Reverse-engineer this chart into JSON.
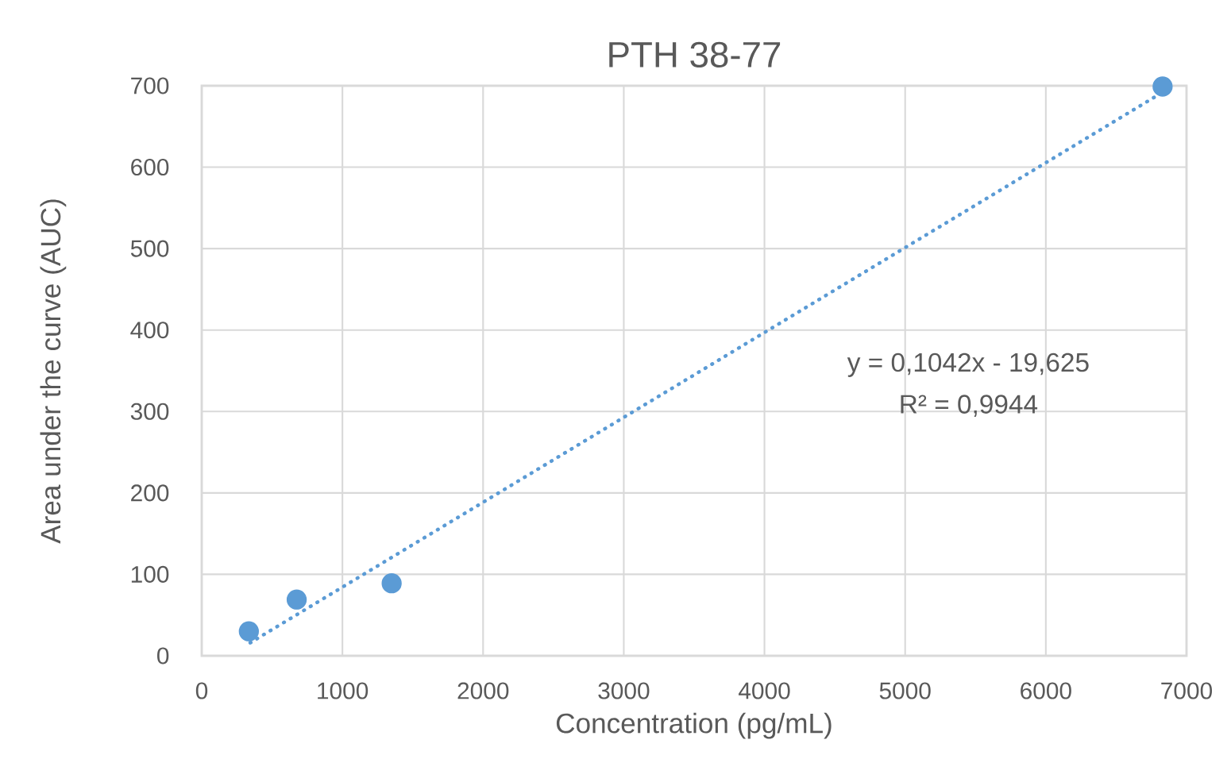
{
  "chart_data": {
    "type": "scatter",
    "title": "PTH 38-77",
    "xlabel": "Concentration (pg/mL)",
    "ylabel": "Area under the curve (AUC)",
    "series": [
      {
        "color": "#5b9bd5",
        "marker": "circle",
        "x": [
          335,
          675,
          1350,
          6830
        ],
        "values": [
          30,
          69,
          89,
          699
        ]
      },
      {
        "type": "line",
        "color": "#5b9bd5",
        "line_style": "dotted",
        "marker": "none",
        "x": [
          345,
          6830
        ],
        "values": [
          16,
          692
        ]
      }
    ],
    "xlim": [
      0,
      7000
    ],
    "ylim": [
      0,
      700
    ],
    "xticks": [
      0,
      1000,
      2000,
      3000,
      4000,
      5000,
      6000,
      7000
    ],
    "yticks": [
      0,
      100,
      200,
      300,
      400,
      500,
      600,
      700
    ],
    "grid": true,
    "annotations": [
      "y = 0,1042x - 19,625",
      "R² = 0,9944"
    ]
  }
}
